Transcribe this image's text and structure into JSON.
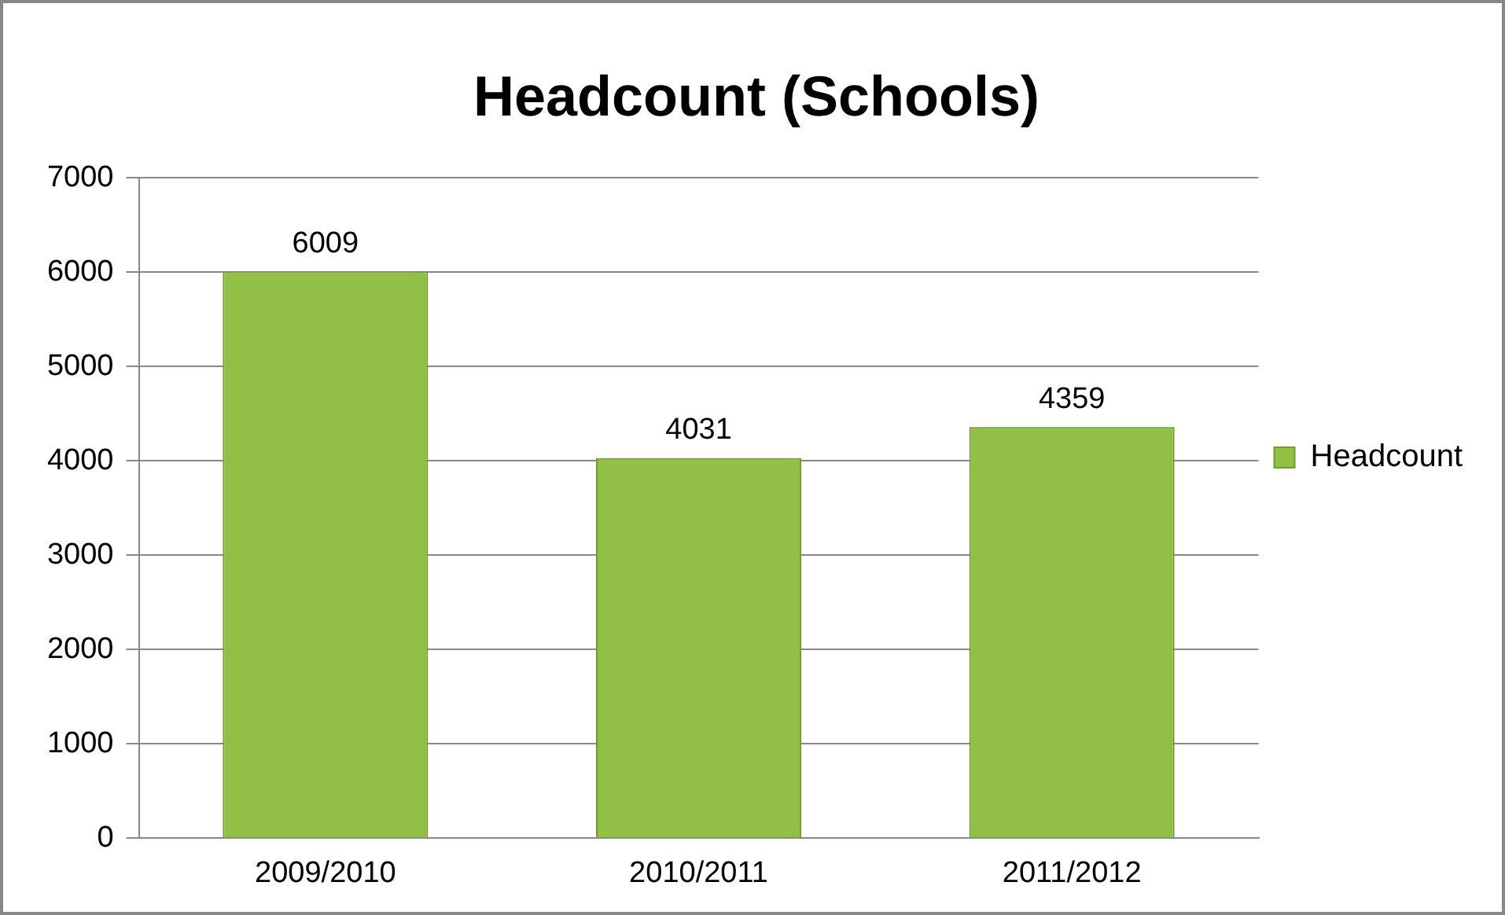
{
  "chart_data": {
    "type": "bar",
    "title": "Headcount (Schools)",
    "categories": [
      "2009/2010",
      "2010/2011",
      "2011/2012"
    ],
    "series": [
      {
        "name": "Headcount",
        "color": "#92c047",
        "values": [
          6009,
          4031,
          4359
        ]
      }
    ],
    "ylim": [
      0,
      7000
    ],
    "yticks": [
      0,
      1000,
      2000,
      3000,
      4000,
      5000,
      6000,
      7000
    ],
    "grid": "y",
    "legend": "right",
    "data_labels": true
  }
}
